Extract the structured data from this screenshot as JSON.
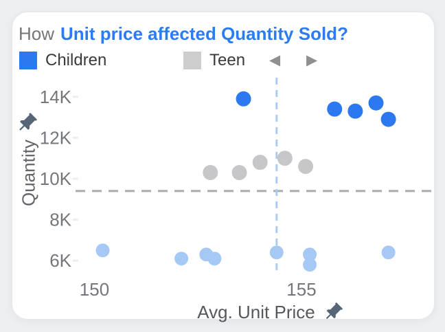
{
  "card": {
    "title": {
      "prefix": "How",
      "highlight": "Unit price affected Quantity Sold?"
    },
    "legend": {
      "items": [
        {
          "label": "Children",
          "color": "#2b78f0"
        },
        {
          "label": "Teen",
          "color": "#cdcdcd"
        }
      ],
      "prev_icon": "◀",
      "next_icon": "▶"
    }
  },
  "chart_data": {
    "type": "scatter",
    "title": "How Unit price affected Quantity Sold?",
    "xlabel": "Avg. Unit Price",
    "ylabel": "Quantity",
    "x_ticks": [
      {
        "value": 150,
        "label": "150"
      },
      {
        "value": 155,
        "label": "155"
      }
    ],
    "y_ticks": [
      {
        "value": 14000,
        "label": "14K"
      },
      {
        "value": 12000,
        "label": "12K"
      },
      {
        "value": 10000,
        "label": "10K"
      },
      {
        "value": 8000,
        "label": "8K"
      },
      {
        "value": 6000,
        "label": "6K"
      }
    ],
    "xlim": [
      149.2,
      158.3
    ],
    "ylim": [
      5400,
      15000
    ],
    "grid": "off",
    "legend_position": "top",
    "series": [
      {
        "name": "Children",
        "color": "#2b78f0",
        "points": [
          {
            "x": 153.6,
            "y": 13900
          },
          {
            "x": 155.8,
            "y": 13400
          },
          {
            "x": 156.3,
            "y": 13300
          },
          {
            "x": 156.8,
            "y": 13700
          },
          {
            "x": 157.1,
            "y": 12900
          }
        ]
      },
      {
        "name": "Teen",
        "color": "#c7c7c9",
        "points": [
          {
            "x": 152.8,
            "y": 10300
          },
          {
            "x": 153.5,
            "y": 10300
          },
          {
            "x": 154.0,
            "y": 10800
          },
          {
            "x": 154.6,
            "y": 11000
          },
          {
            "x": 155.1,
            "y": 10600
          }
        ]
      },
      {
        "name": "unlabeled-light-blue",
        "color": "#a5c9f4",
        "points": [
          {
            "x": 150.2,
            "y": 6500
          },
          {
            "x": 152.1,
            "y": 6100
          },
          {
            "x": 152.7,
            "y": 6300
          },
          {
            "x": 152.9,
            "y": 6100
          },
          {
            "x": 154.4,
            "y": 6400
          },
          {
            "x": 155.2,
            "y": 6300
          },
          {
            "x": 155.2,
            "y": 5800
          },
          {
            "x": 157.1,
            "y": 6400
          }
        ]
      }
    ],
    "reference_lines": [
      {
        "orientation": "horizontal",
        "value": 9400,
        "color": "#ababab",
        "style": "dashed"
      },
      {
        "orientation": "vertical",
        "value": 154.4,
        "color": "#a9cdf2",
        "style": "dashed"
      }
    ]
  },
  "theme": {
    "page_bg": "#edeff2",
    "card_bg": "#ffffff",
    "title_highlight": "#2b7bf2",
    "tick_text": "#73767b",
    "pin_color": "#566676"
  }
}
